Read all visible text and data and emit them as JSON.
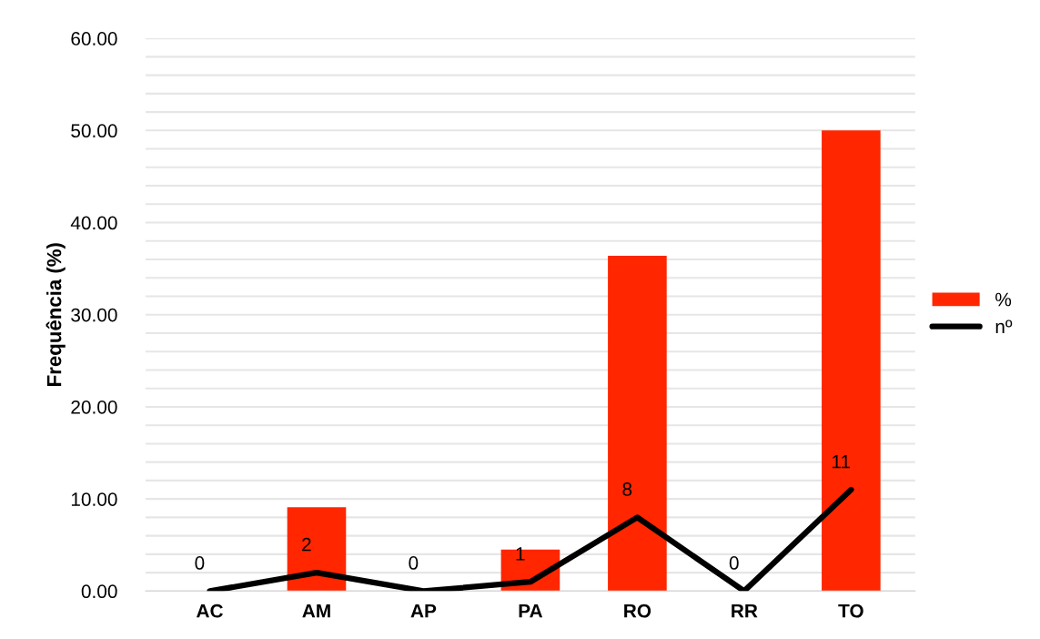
{
  "chart_data": {
    "type": "bar",
    "ylabel": "Frequência (%)",
    "categories": [
      "AC",
      "AM",
      "AP",
      "PA",
      "RO",
      "RR",
      "TO"
    ],
    "series": [
      {
        "name": "%",
        "color": "#ff2600",
        "values": [
          0,
          9.1,
          0,
          4.5,
          36.4,
          0,
          50
        ]
      },
      {
        "name": "nº",
        "type": "line",
        "color": "#000000",
        "values": [
          0,
          2,
          0,
          1,
          8,
          0,
          11
        ],
        "value_labels": [
          "0",
          "2",
          "0",
          "1",
          "8",
          "0",
          "11"
        ]
      }
    ],
    "ylim": [
      0,
      60
    ],
    "yticks": [
      {
        "value": 0,
        "label": "0.00"
      },
      {
        "value": 2,
        "label": null
      },
      {
        "value": 4,
        "label": null
      },
      {
        "value": 6,
        "label": null
      },
      {
        "value": 8,
        "label": null
      },
      {
        "value": 10,
        "label": "10.00"
      },
      {
        "value": 12,
        "label": null
      },
      {
        "value": 14,
        "label": null
      },
      {
        "value": 16,
        "label": null
      },
      {
        "value": 18,
        "label": null
      },
      {
        "value": 20,
        "label": "20.00"
      },
      {
        "value": 22,
        "label": null
      },
      {
        "value": 24,
        "label": null
      },
      {
        "value": 26,
        "label": null
      },
      {
        "value": 28,
        "label": null
      },
      {
        "value": 30,
        "label": "30.00"
      },
      {
        "value": 32,
        "label": null
      },
      {
        "value": 34,
        "label": null
      },
      {
        "value": 36,
        "label": null
      },
      {
        "value": 38,
        "label": null
      },
      {
        "value": 40,
        "label": "40.00"
      },
      {
        "value": 42,
        "label": null
      },
      {
        "value": 44,
        "label": null
      },
      {
        "value": 46,
        "label": null
      },
      {
        "value": 48,
        "label": null
      },
      {
        "value": 50,
        "label": "50.00"
      },
      {
        "value": 52,
        "label": null
      },
      {
        "value": 54,
        "label": null
      },
      {
        "value": 56,
        "label": null
      },
      {
        "value": 58,
        "label": null
      },
      {
        "value": 60,
        "label": "60.00"
      }
    ],
    "grid": "y",
    "legend": "right",
    "marker": "none",
    "line_style": "solid"
  }
}
